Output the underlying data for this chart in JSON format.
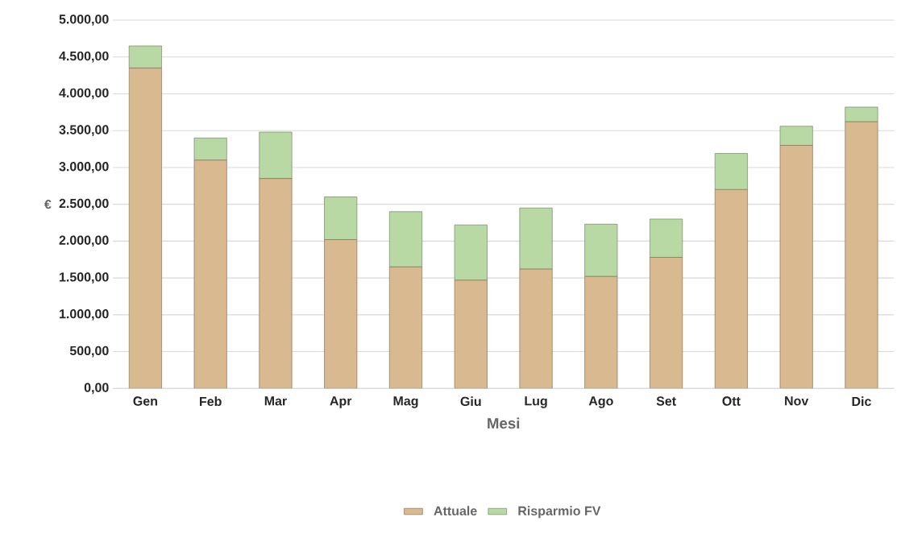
{
  "chart_data": {
    "type": "bar",
    "stacked": true,
    "categories": [
      "Gen",
      "Feb",
      "Mar",
      "Apr",
      "Mag",
      "Giu",
      "Lug",
      "Ago",
      "Set",
      "Ott",
      "Nov",
      "Dic"
    ],
    "series": [
      {
        "name": "Attuale",
        "color": "#d9b98f",
        "values": [
          4350,
          3100,
          2850,
          2020,
          1650,
          1470,
          1620,
          1520,
          1780,
          2700,
          3300,
          3620
        ]
      },
      {
        "name": "Risparmio FV",
        "color": "#b8d9a4",
        "values": [
          300,
          300,
          630,
          580,
          750,
          750,
          830,
          710,
          520,
          490,
          260,
          200
        ]
      }
    ],
    "xlabel": "Mesi",
    "ylabel": "€",
    "ylim": [
      0,
      5000
    ],
    "yticks": [
      {
        "value": 0,
        "label": "0,00"
      },
      {
        "value": 500,
        "label": "500,00"
      },
      {
        "value": 1000,
        "label": "1.000,00"
      },
      {
        "value": 1500,
        "label": "1.500,00"
      },
      {
        "value": 2000,
        "label": "2.000,00"
      },
      {
        "value": 2500,
        "label": "2.500,00"
      },
      {
        "value": 3000,
        "label": "3.000,00"
      },
      {
        "value": 3500,
        "label": "3.500,00"
      },
      {
        "value": 4000,
        "label": "4.000,00"
      },
      {
        "value": 4500,
        "label": "4.500,00"
      },
      {
        "value": 5000,
        "label": "5.000,00"
      }
    ],
    "grid": "y",
    "legend": "bottom"
  }
}
